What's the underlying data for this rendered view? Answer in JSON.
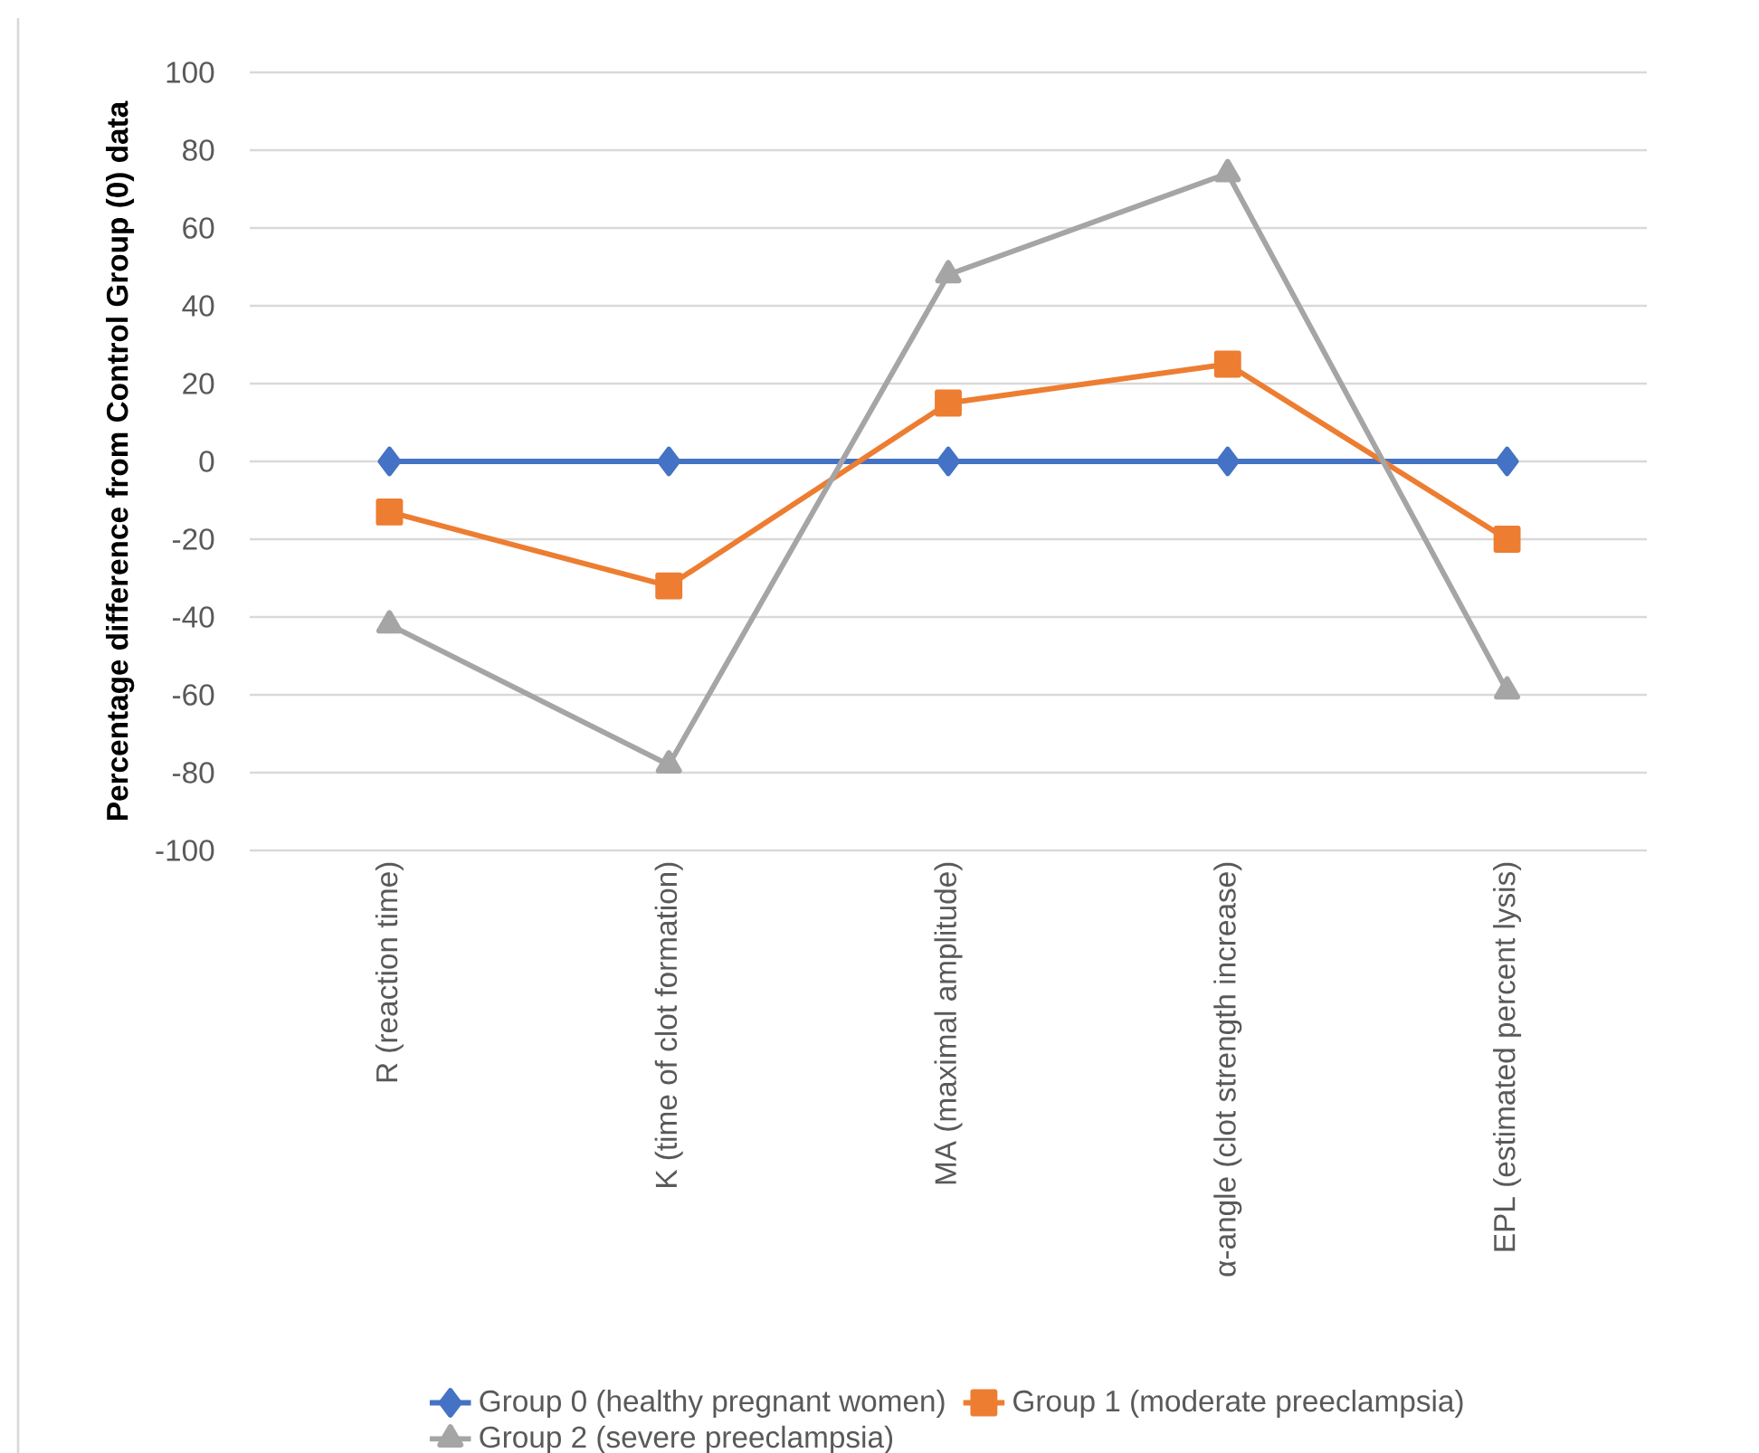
{
  "chart_data": {
    "type": "line",
    "ylabel": "Percentage difference from Control Group (0) data",
    "categories": [
      "R (reaction time)",
      "K (time of clot formation)",
      "MA (maximal amplitude)",
      "α-angle (clot strength increase)",
      "EPL (estimated percent lysis)"
    ],
    "series": [
      {
        "name": "Group 0 (healthy pregnant women)",
        "color": "#4472c4",
        "marker": "diamond",
        "values": [
          0,
          0,
          0,
          0,
          0
        ]
      },
      {
        "name": "Group 1 (moderate preeclampsia)",
        "color": "#ed7d31",
        "marker": "square",
        "values": [
          -13,
          -32,
          15,
          25,
          -20
        ]
      },
      {
        "name": "Group 2 (severe preeclampsia)",
        "color": "#a5a5a5",
        "marker": "triangle",
        "values": [
          -42,
          -78,
          48,
          74,
          -59
        ]
      }
    ],
    "ylim": [
      -100,
      100
    ],
    "yticks": [
      -100,
      -80,
      -60,
      -40,
      -20,
      0,
      20,
      40,
      60,
      80,
      100
    ],
    "grid": "y",
    "legend": "bottom",
    "line_style": "solid"
  }
}
